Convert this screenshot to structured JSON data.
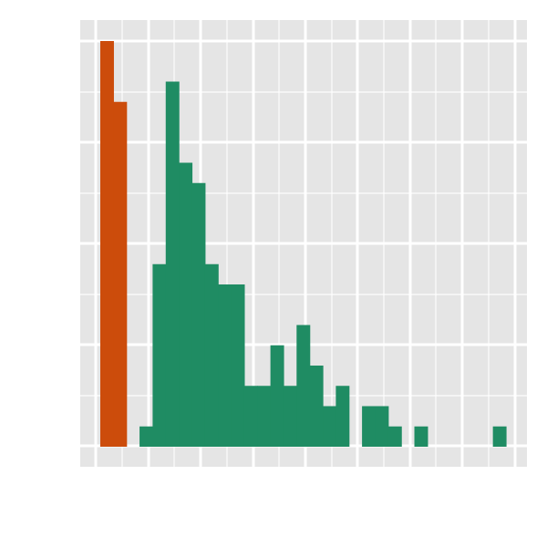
{
  "chart_data": {
    "type": "bar",
    "title": "",
    "xlabel": "",
    "ylabel": "",
    "grid": true,
    "legend": "none",
    "colors": {
      "panel_background": "#e5e5e5",
      "grid_line": "#ffffff",
      "series_a": "#cc4c0b",
      "series_b": "#1f8c63"
    },
    "xlim": [
      0,
      33.5
    ],
    "ylim": [
      -1,
      20
    ],
    "bin_width": 1,
    "series": [
      {
        "color": "#cc4c0b",
        "bins": [
          {
            "x0": 1.5,
            "x1": 2.5,
            "count": 20
          },
          {
            "x0": 2.5,
            "x1": 3.5,
            "count": 17
          }
        ]
      },
      {
        "color": "#1f8c63",
        "bins": [
          {
            "x0": 4.5,
            "x1": 5.5,
            "count": 1
          },
          {
            "x0": 5.5,
            "x1": 6.5,
            "count": 9
          },
          {
            "x0": 6.5,
            "x1": 7.5,
            "count": 18
          },
          {
            "x0": 7.5,
            "x1": 8.5,
            "count": 14
          },
          {
            "x0": 8.5,
            "x1": 9.5,
            "count": 13
          },
          {
            "x0": 9.5,
            "x1": 10.5,
            "count": 9
          },
          {
            "x0": 10.5,
            "x1": 11.5,
            "count": 8
          },
          {
            "x0": 11.5,
            "x1": 12.5,
            "count": 8
          },
          {
            "x0": 12.5,
            "x1": 13.5,
            "count": 3
          },
          {
            "x0": 13.5,
            "x1": 14.5,
            "count": 3
          },
          {
            "x0": 14.5,
            "x1": 15.5,
            "count": 5
          },
          {
            "x0": 15.5,
            "x1": 16.5,
            "count": 3
          },
          {
            "x0": 16.5,
            "x1": 17.5,
            "count": 6
          },
          {
            "x0": 17.5,
            "x1": 18.5,
            "count": 4
          },
          {
            "x0": 18.5,
            "x1": 19.5,
            "count": 2
          },
          {
            "x0": 19.5,
            "x1": 20.5,
            "count": 3
          },
          {
            "x0": 21.5,
            "x1": 22.5,
            "count": 2
          },
          {
            "x0": 22.5,
            "x1": 23.5,
            "count": 2
          },
          {
            "x0": 23.5,
            "x1": 24.5,
            "count": 1
          },
          {
            "x0": 25.5,
            "x1": 26.5,
            "count": 1
          },
          {
            "x0": 31.5,
            "x1": 32.5,
            "count": 1
          }
        ]
      }
    ],
    "x_major_ticks": [
      2,
      6,
      10,
      14,
      18,
      22,
      26,
      30,
      33
    ],
    "x_minor_ticks": [
      4,
      8,
      12,
      16,
      20,
      24,
      28
    ],
    "y_major_ticks": [
      0,
      5,
      10,
      15,
      20
    ],
    "y_minor_ticks": [
      2.5,
      7.5,
      12.5,
      17.5
    ]
  }
}
